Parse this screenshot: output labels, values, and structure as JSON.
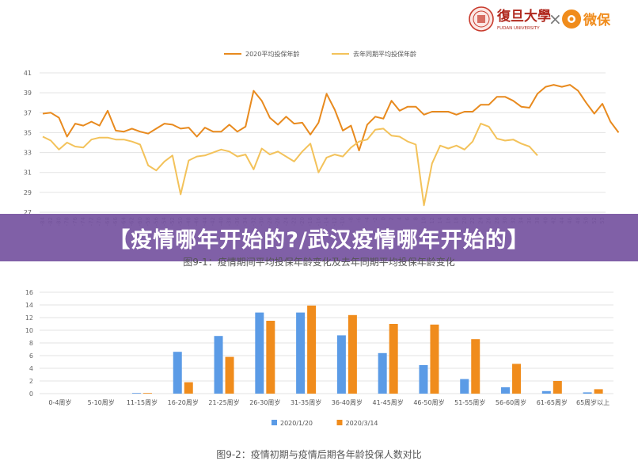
{
  "header": {
    "university_name": "復旦大學",
    "university_en": "FUDAN UNIVERSITY",
    "separator": "×",
    "partner_name": "微保"
  },
  "banner": {
    "title": "【疫情哪年开始的?/武汉疫情哪年开始的】"
  },
  "chart1": {
    "caption": "图9-1：疫情期间平均投保年龄变化及去年同期平均投保年龄变化"
  },
  "chart2": {
    "caption": "图9-2：疫情初期与疫情后期各年龄投保人数对比"
  },
  "colors": {
    "primary": "#E88A1E",
    "secondary": "#F3C25A",
    "blue": "#5B9BE6",
    "orange": "#F08C1C"
  },
  "chart_data": [
    {
      "type": "line",
      "ylim": [
        27,
        41
      ],
      "yticks": [
        27,
        29,
        31,
        33,
        35,
        37,
        39,
        41
      ],
      "x_tick_labels": [
        "-84",
        "-82",
        "-80",
        "-78",
        "-76",
        "-74",
        "-72",
        "-70",
        "-68",
        "-66",
        "-64",
        "-62",
        "-60",
        "-58",
        "-56",
        "-54",
        "-52",
        "-50",
        "-48",
        "-46",
        "-44",
        "-42",
        "-40",
        "-38",
        "-36",
        "-34",
        "-32",
        "-30",
        "-28",
        "-26",
        "-24",
        "-22",
        "-20",
        "-18",
        "-16",
        "-14",
        "-12",
        "-10",
        "-8",
        "-6",
        "-4",
        "-2",
        "0",
        "2",
        "4",
        "6",
        "8",
        "10",
        "12",
        "14",
        "16",
        "18",
        "20",
        "22",
        "24",
        "26",
        "28",
        "30",
        "32",
        "34",
        "36",
        "38",
        "40",
        "42",
        "44",
        "46",
        "48",
        "50",
        "52",
        "53"
      ],
      "series": [
        {
          "name": "2020平均投保年龄",
          "color": "#E88A1E",
          "values": [
            36.9,
            37.0,
            36.5,
            34.6,
            35.9,
            35.7,
            36.1,
            35.7,
            37.2,
            35.2,
            35.1,
            35.4,
            35.1,
            34.9,
            35.4,
            35.9,
            35.8,
            35.4,
            35.5,
            34.6,
            35.5,
            35.1,
            35.1,
            35.8,
            35.1,
            35.6,
            39.2,
            38.2,
            36.5,
            35.8,
            36.6,
            35.9,
            36.0,
            34.8,
            36.0,
            38.9,
            37.3,
            35.2,
            35.7,
            33.2,
            35.8,
            36.6,
            36.4,
            38.2,
            37.2,
            37.6,
            37.6,
            36.8,
            37.1,
            37.1,
            37.1,
            36.8,
            37.1,
            37.1,
            37.8,
            37.8,
            38.6,
            38.6,
            38.2,
            37.6,
            37.5,
            38.9,
            39.6,
            39.8,
            39.6,
            39.8,
            39.2,
            38.0,
            36.9,
            37.9,
            36.1,
            35.0
          ]
        },
        {
          "name": "去年同期平均投保年龄",
          "color": "#F3C25A",
          "values": [
            34.6,
            34.2,
            33.3,
            34.0,
            33.6,
            33.5,
            34.3,
            34.5,
            34.5,
            34.3,
            34.3,
            34.1,
            33.8,
            31.7,
            31.2,
            32.1,
            32.7,
            28.8,
            32.2,
            32.6,
            32.7,
            33.0,
            33.3,
            33.1,
            32.6,
            32.8,
            31.3,
            33.4,
            32.8,
            33.1,
            32.6,
            32.1,
            33.1,
            33.9,
            31.0,
            32.5,
            32.8,
            32.6,
            33.5,
            34.1,
            34.3,
            35.3,
            35.4,
            34.7,
            34.6,
            34.1,
            33.8,
            27.7,
            31.9,
            33.7,
            33.4,
            33.7,
            33.3,
            34.1,
            35.9,
            35.6,
            34.4,
            34.2,
            34.3,
            33.9,
            33.6,
            32.7
          ]
        }
      ],
      "legend_placement": "top",
      "grid": true
    },
    {
      "type": "bar",
      "categories": [
        "0-4周岁",
        "5-10周岁",
        "11-15周岁",
        "16-20周岁",
        "21-25周岁",
        "26-30周岁",
        "31-35周岁",
        "36-40周岁",
        "41-45周岁",
        "46-50周岁",
        "51-55周岁",
        "56-60周岁",
        "61-65周岁",
        "65周岁以上"
      ],
      "ylim": [
        0,
        16
      ],
      "yticks": [
        0,
        2,
        4,
        6,
        8,
        10,
        12,
        14,
        16
      ],
      "series": [
        {
          "name": "2020/1/20",
          "color": "#5B9BE6",
          "values": [
            0,
            0,
            0.1,
            6.6,
            9.1,
            12.8,
            12.8,
            9.2,
            6.4,
            4.5,
            2.3,
            1.0,
            0.4,
            0.2
          ]
        },
        {
          "name": "2020/3/14",
          "color": "#F08C1C",
          "values": [
            0,
            0,
            0.1,
            1.8,
            5.8,
            11.5,
            13.9,
            12.4,
            11.0,
            10.9,
            8.6,
            4.7,
            2.0,
            0.7
          ]
        }
      ],
      "legend_placement": "bottom",
      "grid": true
    }
  ]
}
